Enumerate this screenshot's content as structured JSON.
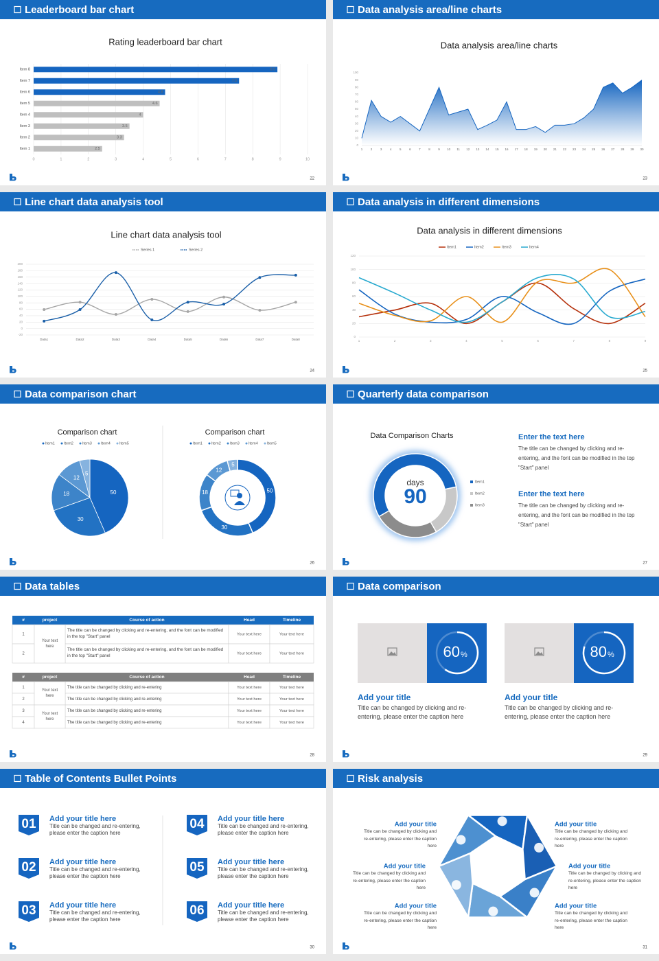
{
  "slides": [
    {
      "header": "Leaderboard bar chart",
      "page_number": 22,
      "chart_data": {
        "type": "hbar",
        "title": "Rating leaderboard bar chart",
        "categories": [
          "Item 1",
          "Item 2",
          "Item 3",
          "Item 4",
          "Item 5",
          "Item 6",
          "Item 7",
          "Item 8"
        ],
        "values": [
          2.5,
          3.3,
          3.5,
          4,
          4.6,
          4.8,
          7.5,
          8.9
        ],
        "colors": [
          "#bfbfbf",
          "#bfbfbf",
          "#bfbfbf",
          "#bfbfbf",
          "#bfbfbf",
          "#1565c0",
          "#1565c0",
          "#1565c0"
        ],
        "xlim": [
          0,
          10
        ],
        "xticks": [
          0,
          1,
          2,
          3,
          4,
          5,
          6,
          7,
          8,
          9,
          10
        ],
        "grid": true
      }
    },
    {
      "header": "Data analysis area/line charts",
      "page_number": 23,
      "chart_data": {
        "type": "area",
        "title": "Data analysis area/line charts",
        "x": [
          1,
          2,
          3,
          4,
          5,
          6,
          7,
          8,
          9,
          10,
          11,
          12,
          13,
          14,
          15,
          16,
          17,
          18,
          19,
          20,
          21,
          22,
          23,
          24,
          25,
          26,
          27,
          28,
          29,
          30
        ],
        "values": [
          10,
          62,
          40,
          32,
          40,
          30,
          20,
          50,
          80,
          42,
          46,
          50,
          22,
          28,
          35,
          60,
          22,
          22,
          26,
          18,
          28,
          28,
          30,
          38,
          50,
          80,
          86,
          72,
          80,
          90
        ],
        "color": "#1565c0",
        "xlim": [
          1,
          30
        ],
        "xticks": [
          1,
          2,
          3,
          4,
          5,
          6,
          7,
          8,
          9,
          10,
          11,
          12,
          13,
          14,
          15,
          16,
          17,
          18,
          19,
          20,
          21,
          22,
          23,
          24,
          25,
          26,
          27,
          28,
          29,
          30
        ],
        "ylim": [
          0,
          100
        ],
        "yticks": [
          0,
          10,
          20,
          30,
          40,
          50,
          60,
          70,
          80,
          90,
          100
        ]
      }
    },
    {
      "header": "Line chart data analysis tool",
      "page_number": 24,
      "chart_data": {
        "type": "line",
        "title": "Line chart data analysis tool",
        "categories": [
          "Data1",
          "Data2",
          "Data3",
          "Data4",
          "Data5",
          "Data6",
          "Data7",
          "Data8"
        ],
        "series": [
          {
            "name": "Series 1",
            "color": "#a6a6a6",
            "values": [
              59,
              82,
              44,
              91,
              53,
              98,
              57,
              82
            ]
          },
          {
            "name": "Series 2",
            "color": "#1a5fa8",
            "values": [
              23,
              59,
              174,
              27,
              82,
              76,
              159,
              166
            ]
          }
        ],
        "ylim": [
          -20,
          200
        ],
        "yticks": [
          -20,
          0,
          20,
          40,
          60,
          80,
          100,
          120,
          140,
          160,
          180,
          200
        ],
        "grid": true,
        "smooth": true
      }
    },
    {
      "header": "Data analysis in different dimensions",
      "page_number": 25,
      "chart_data": {
        "type": "line",
        "title": "Data analysis in different dimensions",
        "x": [
          1,
          2,
          3,
          4,
          5,
          6,
          7,
          8,
          9
        ],
        "series": [
          {
            "name": "Item1",
            "color": "#b5300b",
            "values": [
              30,
              40,
              50,
              20,
              52,
              80,
              42,
              20,
              50
            ]
          },
          {
            "name": "Item2",
            "color": "#1565c0",
            "values": [
              70,
              34,
              22,
              26,
              60,
              36,
              20,
              68,
              86
            ]
          },
          {
            "name": "Item3",
            "color": "#e8901a",
            "values": [
              50,
              32,
              24,
              60,
              22,
              82,
              80,
              100,
              30
            ]
          },
          {
            "name": "Item4",
            "color": "#27a9cf",
            "values": [
              88,
              65,
              40,
              22,
              52,
              88,
              86,
              30,
              38
            ]
          }
        ],
        "xlim": [
          1,
          9
        ],
        "xticks": [
          1,
          2,
          3,
          4,
          5,
          6,
          7,
          8,
          9
        ],
        "ylim": [
          0,
          120
        ],
        "yticks": [
          0,
          20,
          40,
          60,
          80,
          100,
          120
        ],
        "grid": true,
        "smooth": true
      }
    },
    {
      "header": "Data comparison chart",
      "page_number": 26,
      "chart_data": [
        {
          "type": "pie",
          "title": "Comparison chart",
          "categories": [
            "Item1",
            "Item2",
            "Item3",
            "Item4",
            "Item5"
          ],
          "values": [
            50,
            30,
            18,
            12,
            5
          ],
          "colors": [
            "#1565c0",
            "#2272c3",
            "#3d84c9",
            "#5b98d3",
            "#86b3df"
          ]
        },
        {
          "type": "donut",
          "title": "Comparison chart",
          "categories": [
            "Item1",
            "Item2",
            "Item3",
            "Item4",
            "Item5"
          ],
          "values": [
            50,
            30,
            18,
            12,
            5
          ],
          "colors": [
            "#1565c0",
            "#2272c3",
            "#3d84c9",
            "#5b98d3",
            "#86b3df"
          ]
        }
      ]
    },
    {
      "header": "Quarterly data comparison",
      "page_number": 27,
      "chart_data": {
        "type": "donut",
        "title": "Data Comparison Charts",
        "categories": [
          "Item1",
          "Item2",
          "Item3"
        ],
        "values": [
          55,
          20,
          25
        ],
        "colors": [
          "#1565c0",
          "#c8c8c8",
          "#8c8c8c"
        ],
        "center_label": "days",
        "center_value": 90
      },
      "text_blocks": [
        {
          "title": "Enter the text here",
          "body": "The title can be changed by clicking and re-entering, and the font can be modified in the top \"Start\" panel"
        },
        {
          "title": "Enter the text here",
          "body": "The title can be changed by clicking and re-entering, and the font can be modified in the top \"Start\" panel"
        }
      ]
    },
    {
      "header": "Data tables",
      "page_number": 28,
      "tables": [
        {
          "columns": [
            "#",
            "project",
            "Course of action",
            "Head",
            "Timeline"
          ],
          "groups": [
            {
              "project": "Your text here",
              "rows": [
                {
                  "number": 1,
                  "action": "The title can be changed by clicking and re-entering, and the font can be modified in the top \"Start\" panel",
                  "head": "Your text here",
                  "timeline": "Your text here"
                },
                {
                  "number": 2,
                  "action": "The title can be changed by clicking and re-entering, and the font can be modified in the top \"Start\" panel",
                  "head": "Your text here",
                  "timeline": "Your text here"
                }
              ]
            }
          ]
        },
        {
          "columns": [
            "#",
            "project",
            "Course of action",
            "Head",
            "Timeline"
          ],
          "groups": [
            {
              "project": "Your text here",
              "rows": [
                {
                  "number": 1,
                  "action": "The title can be changed by clicking and re-entering",
                  "head": "Your text here",
                  "timeline": "Your text here"
                },
                {
                  "number": 2,
                  "action": "The title can be changed by clicking and re-entering",
                  "head": "Your text here",
                  "timeline": "Your text here"
                }
              ]
            },
            {
              "project": "Your text here",
              "rows": [
                {
                  "number": 3,
                  "action": "The title can be changed by clicking and re-entering",
                  "head": "Your text here",
                  "timeline": "Your text here"
                },
                {
                  "number": 4,
                  "action": "The title can be changed by clicking and re-entering",
                  "head": "Your text here",
                  "timeline": "Your text here"
                }
              ]
            }
          ]
        }
      ]
    },
    {
      "header": "Data comparison",
      "page_number": 29,
      "ring_range": [
        0,
        100
      ],
      "cards": [
        {
          "value": 60,
          "unit": "%",
          "title": "Add your title",
          "body": "Title can be changed by clicking and re-entering, please enter the caption here"
        },
        {
          "value": 80,
          "unit": "%",
          "title": "Add your title",
          "body": "Title can be changed by clicking and re-entering, please enter the caption here"
        }
      ]
    },
    {
      "header": "Table of Contents Bullet Points",
      "page_number": 30,
      "items": [
        {
          "number": "01",
          "title": "Add your title here",
          "body": "Title can be changed and re-entering, please enter the caption here"
        },
        {
          "number": "02",
          "title": "Add your title here",
          "body": "Title can be changed and re-entering, please enter the caption here"
        },
        {
          "number": "03",
          "title": "Add your title here",
          "body": "Title can be changed and re-entering, please enter the caption here"
        },
        {
          "number": "04",
          "title": "Add your title here",
          "body": "Title can be changed and re-entering, please enter the caption here"
        },
        {
          "number": "05",
          "title": "Add your title here",
          "body": "Title can be changed and re-entering, please enter the caption here"
        },
        {
          "number": "06",
          "title": "Add your title here",
          "body": "Title can be changed and re-entering, please enter the caption here"
        }
      ]
    },
    {
      "header": "Risk analysis",
      "page_number": 31,
      "items": [
        {
          "title": "Add your title",
          "body": "Title can be changed by clicking and re-entering, please enter the caption here"
        },
        {
          "title": "Add your title",
          "body": "Title can be changed by clicking and re-entering, please enter the caption here"
        },
        {
          "title": "Add your title",
          "body": "Title can be changed by clicking and re-entering, please enter the caption here"
        },
        {
          "title": "Add your title",
          "body": "Title can be changed by clicking and re-entering, please enter the caption here"
        },
        {
          "title": "Add your title",
          "body": "Title can be changed by clicking and re-entering, please enter the caption here"
        },
        {
          "title": "Add your title",
          "body": "Title can be changed by clicking and re-entering, please enter the caption here"
        }
      ]
    }
  ]
}
